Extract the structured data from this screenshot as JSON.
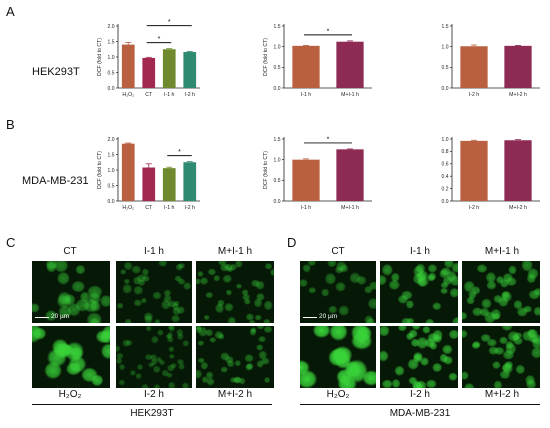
{
  "panels": {
    "A": "A",
    "B": "B",
    "C": "C",
    "D": "D"
  },
  "rows": {
    "A": "HEK293T",
    "B": "MDA-MB-231"
  },
  "colors": {
    "H2O2": "#b8603f",
    "CT": "#a3284f",
    "I1h": "#6f8a2e",
    "I2h": "#2f8a72",
    "M_I1h": "#8e2b55",
    "fluor": "#39d339"
  },
  "chart_data": [
    {
      "id": "A1",
      "type": "bar",
      "categories": [
        "H2O2",
        "CT",
        "I-1 h",
        "I-2 h"
      ],
      "category_labels": [
        "H₂O₂",
        "CT",
        "I-1 h",
        "I-2 h"
      ],
      "values": [
        1.4,
        0.97,
        1.25,
        1.16
      ],
      "errors": [
        0.07,
        0.02,
        0.02,
        0.02
      ],
      "bar_colors": [
        "#b8603f",
        "#a3284f",
        "#6f8a2e",
        "#2f8a72"
      ],
      "ylabel": "DCF (fold to CT)",
      "ylim": [
        0,
        2.0
      ],
      "yticks": [
        0.0,
        0.5,
        1.0,
        1.5,
        2.0
      ],
      "significance": [
        {
          "from": "CT",
          "to": "I-1 h",
          "label": "*"
        },
        {
          "from": "CT",
          "to": "I-2 h",
          "label": "*"
        }
      ]
    },
    {
      "id": "A2",
      "type": "bar",
      "categories": [
        "I-1 h",
        "M+I-1 h"
      ],
      "values": [
        1.02,
        1.12
      ],
      "errors": [
        0.01,
        0.02
      ],
      "bar_colors": [
        "#b8603f",
        "#8e2b55"
      ],
      "ylabel": "DCF (fold to CT)",
      "ylim": [
        0,
        1.5
      ],
      "yticks": [
        0.0,
        0.5,
        1.0,
        1.5
      ],
      "significance": [
        {
          "from": "I-1 h",
          "to": "M+I-1 h",
          "label": "*"
        }
      ]
    },
    {
      "id": "A3",
      "type": "bar",
      "categories": [
        "I-2 h",
        "M+I-2 h"
      ],
      "values": [
        1.01,
        1.02
      ],
      "errors": [
        0.03,
        0.01
      ],
      "bar_colors": [
        "#b8603f",
        "#8e2b55"
      ],
      "ylabel": "",
      "ylim": [
        0,
        1.5
      ],
      "yticks": [
        0.0,
        0.5,
        1.0,
        1.5
      ],
      "significance": []
    },
    {
      "id": "B1",
      "type": "bar",
      "categories": [
        "H2O2",
        "CT",
        "I-1 h",
        "I-2 h"
      ],
      "category_labels": [
        "H₂O₂",
        "CT",
        "I-1 h",
        "I-2 h"
      ],
      "values": [
        1.85,
        1.08,
        1.06,
        1.25
      ],
      "errors": [
        0.02,
        0.12,
        0.03,
        0.02
      ],
      "bar_colors": [
        "#b8603f",
        "#a3284f",
        "#6f8a2e",
        "#2f8a72"
      ],
      "ylabel": "DCF (fold to CT)",
      "ylim": [
        0,
        2.0
      ],
      "yticks": [
        0.0,
        0.5,
        1.0,
        1.5,
        2.0
      ],
      "significance": [
        {
          "from": "I-1 h",
          "to": "I-2 h",
          "label": "*"
        }
      ]
    },
    {
      "id": "B2",
      "type": "bar",
      "categories": [
        "I-1 h",
        "M+I-1 h"
      ],
      "values": [
        1.0,
        1.25
      ],
      "errors": [
        0.02,
        0.01
      ],
      "bar_colors": [
        "#b8603f",
        "#8e2b55"
      ],
      "ylabel": "DCF (fold to CT)",
      "ylim": [
        0,
        1.5
      ],
      "yticks": [
        0.0,
        0.5,
        1.0,
        1.5
      ],
      "significance": [
        {
          "from": "I-1 h",
          "to": "M+I-1 h",
          "label": "*"
        }
      ]
    },
    {
      "id": "B3",
      "type": "bar",
      "categories": [
        "I-2 h",
        "M+I-2 h"
      ],
      "values": [
        0.97,
        0.98
      ],
      "errors": [
        0.01,
        0.01
      ],
      "bar_colors": [
        "#b8603f",
        "#8e2b55"
      ],
      "ylabel": "",
      "ylim": [
        0,
        1.0
      ],
      "yticks": [
        0.0,
        0.2,
        0.4,
        0.6,
        0.8,
        1.0
      ],
      "significance": []
    }
  ],
  "micrographs": {
    "C": {
      "top_labels": [
        "CT",
        "I-1 h",
        "M+I-1 h"
      ],
      "bottom_labels": [
        "H₂O₂",
        "I-2 h",
        "M+I-2 h"
      ],
      "scale_bar": "20 µm",
      "cell_line": "HEK293T"
    },
    "D": {
      "top_labels": [
        "CT",
        "I-1 h",
        "M+I-1 h"
      ],
      "bottom_labels": [
        "H₂O₂",
        "I-2 h",
        "M+I-2 h"
      ],
      "scale_bar": "20 µm",
      "cell_line": "MDA-MB-231"
    }
  }
}
